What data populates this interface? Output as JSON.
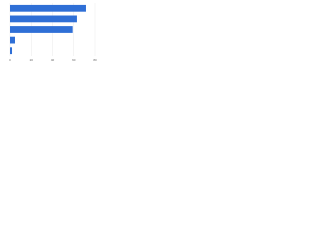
{
  "chart_data": {
    "type": "bar",
    "orientation": "horizontal",
    "categories": [
      null,
      null,
      null,
      null,
      null
    ],
    "values": [
      71.5,
      63,
      59,
      4.7,
      1.9
    ],
    "color": "#2f6fd6",
    "xlim": [
      0,
      80
    ],
    "xticks": [
      0,
      20,
      40,
      60,
      80
    ],
    "grid": true
  }
}
